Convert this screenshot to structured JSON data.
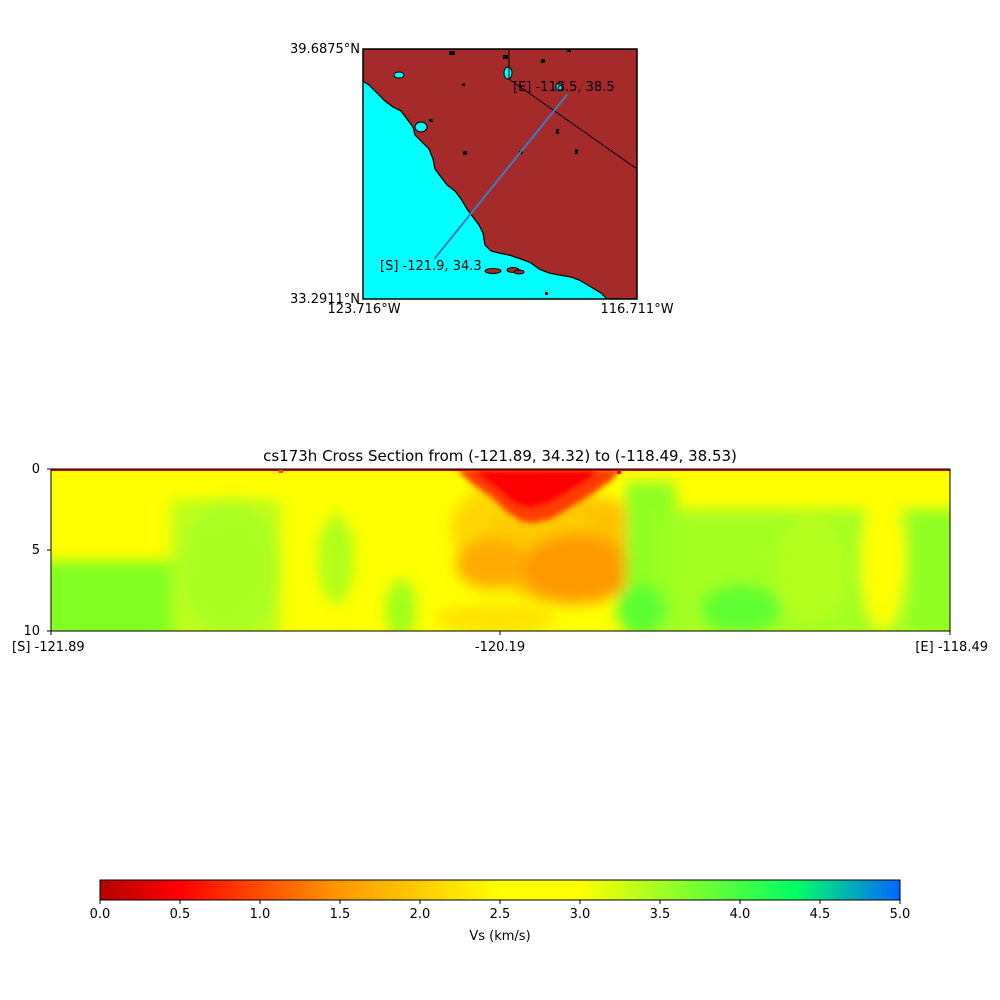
{
  "map": {
    "lat_top": "39.6875°N",
    "lat_bottom": "33.2911°N",
    "lon_left": "123.716°W",
    "lon_right": "116.711°W",
    "start_label": "[S] -121.9, 34.3",
    "end_label": "[E] -118.5, 38.5",
    "bounds": {
      "lon_min": -123.716,
      "lon_max": -116.711,
      "lat_min": 33.2911,
      "lat_max": 39.6875
    },
    "path": {
      "start": [
        -121.89,
        34.32
      ],
      "end": [
        -118.49,
        38.53
      ]
    },
    "colors": {
      "land": "#a52a2a",
      "ocean": "#00ffff",
      "path": "#3b7fbf",
      "border": "#000000"
    }
  },
  "chart_data": [
    {
      "type": "heatmap",
      "title": "cs173h Cross Section from (-121.89, 34.32) to (-118.49, 38.53)",
      "x_ticks": [
        "[S] -121.89",
        "-120.19",
        "[E] -118.49"
      ],
      "y_ticks": [
        "0",
        "5",
        "10"
      ],
      "ylim": [
        10,
        0
      ],
      "x_range": [
        -121.89,
        -118.49
      ],
      "variable": "Vs (km/s)",
      "regions": [
        {
          "name": "low velocity basin",
          "x_center": -120.19,
          "depth_range": [
            0,
            3.5
          ],
          "vs": 0.8
        },
        {
          "name": "deep high velocity west",
          "x_range": [
            -121.89,
            -121.4
          ],
          "depth_range": [
            5.5,
            10
          ],
          "vs": 3.5
        }
      ]
    },
    {
      "type": "colorbar",
      "label": "Vs (km/s)",
      "range": [
        0,
        5
      ],
      "ticks": [
        "0.0",
        "0.5",
        "1.0",
        "1.5",
        "2.0",
        "2.5",
        "3.0",
        "3.5",
        "4.0",
        "4.5",
        "5.0"
      ],
      "colors": [
        "#b40000",
        "#ff0000",
        "#ff9900",
        "#ffff00",
        "#00ff66",
        "#0066ff"
      ]
    }
  ]
}
